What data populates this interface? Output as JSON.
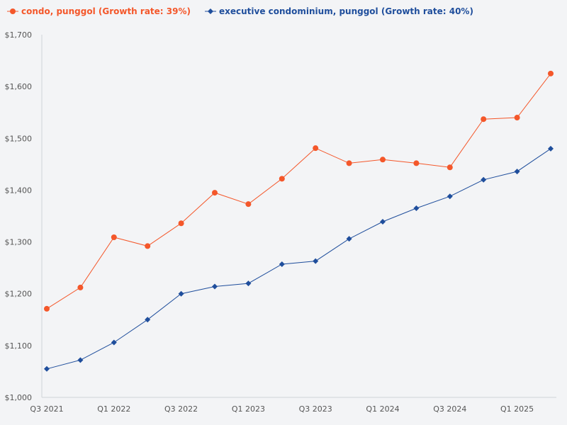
{
  "chart_data": {
    "type": "line",
    "title": "",
    "xlabel": "",
    "ylabel": "",
    "ylim": [
      1000,
      1700
    ],
    "y_ticks": [
      1000,
      1100,
      1200,
      1300,
      1400,
      1500,
      1600,
      1700
    ],
    "y_tick_labels": [
      "$1,000",
      "$1,100",
      "$1,200",
      "$1,300",
      "$1,400",
      "$1,500",
      "$1,600",
      "$1,700"
    ],
    "categories": [
      "Q3 2021",
      "Q4 2021",
      "Q1 2022",
      "Q2 2022",
      "Q3 2022",
      "Q4 2022",
      "Q1 2023",
      "Q2 2023",
      "Q3 2023",
      "Q4 2023",
      "Q1 2024",
      "Q2 2024",
      "Q3 2024",
      "Q4 2024",
      "Q1 2025",
      "Q2 2025"
    ],
    "x_tick_labels": [
      "Q3 2021",
      "",
      "Q1 2022",
      "",
      "Q3 2022",
      "",
      "Q1 2023",
      "",
      "Q3 2023",
      "",
      "Q1 2024",
      "",
      "Q3 2024",
      "",
      "Q1 2025",
      ""
    ],
    "grid": false,
    "legend_position": "top-left",
    "series": [
      {
        "name": "condo, punggol (Growth rate: 39%)",
        "color": "#f4572a",
        "marker": "circle",
        "values": [
          1171,
          1212,
          1309,
          1292,
          1336,
          1395,
          1373,
          1422,
          1481,
          1452,
          1459,
          1452,
          1444,
          1537,
          1540,
          1625
        ]
      },
      {
        "name": "executive condominium, punggol (Growth rate: 40%)",
        "color": "#1f4e9c",
        "marker": "diamond",
        "values": [
          1055,
          1072,
          1106,
          1150,
          1200,
          1214,
          1220,
          1257,
          1263,
          1306,
          1339,
          1365,
          1388,
          1420,
          1436,
          1480
        ]
      }
    ]
  }
}
